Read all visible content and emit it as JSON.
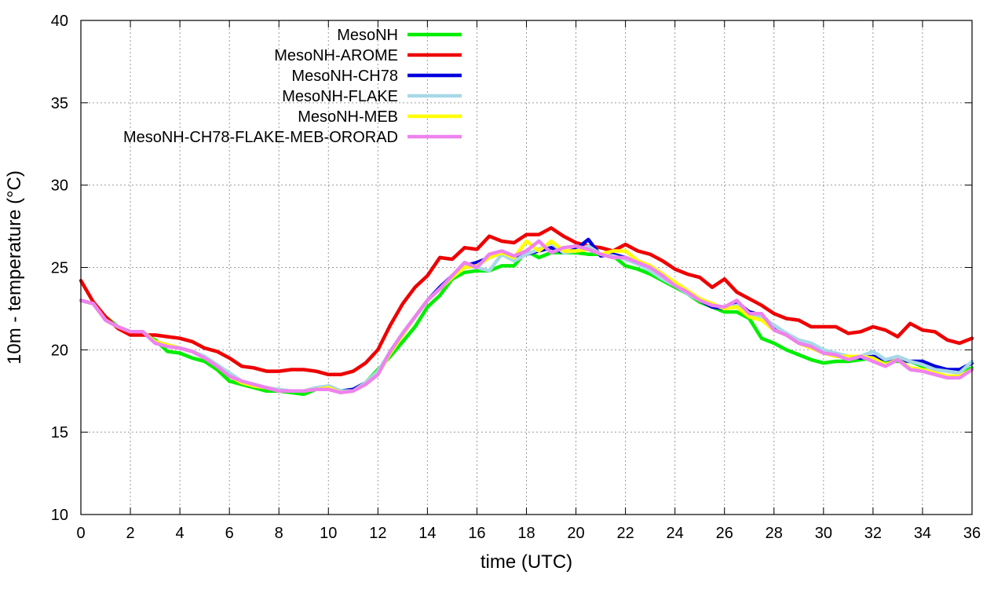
{
  "chart_data": {
    "type": "line",
    "title": "",
    "xlabel": "time (UTC)",
    "ylabel": "10m - temperature (°C)",
    "xlim": [
      0,
      36
    ],
    "ylim": [
      10,
      40
    ],
    "xticks": [
      0,
      2,
      4,
      6,
      8,
      10,
      12,
      14,
      16,
      18,
      20,
      22,
      24,
      26,
      28,
      30,
      32,
      34,
      36
    ],
    "yticks": [
      10,
      15,
      20,
      25,
      30,
      35,
      40
    ],
    "grid": true,
    "legend_position": "top-left",
    "x": [
      0,
      0.5,
      1,
      1.5,
      2,
      2.5,
      3,
      3.5,
      4,
      4.5,
      5,
      5.5,
      6,
      6.5,
      7,
      7.5,
      8,
      8.5,
      9,
      9.5,
      10,
      10.5,
      11,
      11.5,
      12,
      12.5,
      13,
      13.5,
      14,
      14.5,
      15,
      15.5,
      16,
      16.5,
      17,
      17.5,
      18,
      18.5,
      19,
      19.5,
      20,
      20.5,
      21,
      21.5,
      22,
      22.5,
      23,
      23.5,
      24,
      24.5,
      25,
      25.5,
      26,
      26.5,
      27,
      27.5,
      28,
      28.5,
      29,
      29.5,
      30,
      30.5,
      31,
      31.5,
      32,
      32.5,
      33,
      33.5,
      34,
      34.5,
      35,
      35.5,
      36
    ],
    "series": [
      {
        "name": "MesoNH",
        "color": "#00ee00",
        "values": [
          23.0,
          22.8,
          22.0,
          21.4,
          21.0,
          21.0,
          20.6,
          19.9,
          19.8,
          19.5,
          19.3,
          18.8,
          18.1,
          17.9,
          17.7,
          17.5,
          17.5,
          17.4,
          17.3,
          17.6,
          17.7,
          17.5,
          17.6,
          18.0,
          18.8,
          19.6,
          20.5,
          21.4,
          22.6,
          23.3,
          24.3,
          24.7,
          24.8,
          24.8,
          25.1,
          25.1,
          26.0,
          25.6,
          25.9,
          25.9,
          25.9,
          25.8,
          25.8,
          25.7,
          25.1,
          24.9,
          24.6,
          24.2,
          23.8,
          23.4,
          22.9,
          22.6,
          22.3,
          22.3,
          21.9,
          20.7,
          20.4,
          20.0,
          19.7,
          19.4,
          19.2,
          19.3,
          19.3,
          19.4,
          19.5,
          19.3,
          19.3,
          19.3,
          19.0,
          18.9,
          18.7,
          18.6,
          18.9
        ]
      },
      {
        "name": "MesoNH-AROME",
        "color": "#ee0000",
        "values": [
          24.2,
          22.9,
          22.0,
          21.3,
          20.9,
          20.9,
          20.9,
          20.8,
          20.7,
          20.5,
          20.1,
          19.9,
          19.5,
          19.0,
          18.9,
          18.7,
          18.7,
          18.8,
          18.8,
          18.7,
          18.5,
          18.5,
          18.7,
          19.2,
          20.0,
          21.5,
          22.8,
          23.8,
          24.5,
          25.6,
          25.5,
          26.2,
          26.1,
          26.9,
          26.6,
          26.5,
          27.0,
          27.0,
          27.4,
          26.9,
          26.5,
          26.3,
          26.2,
          26.0,
          26.4,
          26.0,
          25.8,
          25.4,
          24.9,
          24.6,
          24.4,
          23.8,
          24.3,
          23.5,
          23.1,
          22.7,
          22.2,
          21.9,
          21.8,
          21.4,
          21.4,
          21.4,
          21.0,
          21.1,
          21.4,
          21.2,
          20.8,
          21.6,
          21.2,
          21.1,
          20.6,
          20.4,
          20.7
        ]
      },
      {
        "name": "MesoNH-CH78",
        "color": "#0000dd",
        "values": [
          23.0,
          22.8,
          21.8,
          21.4,
          21.1,
          21.1,
          20.5,
          20.3,
          20.1,
          19.9,
          19.5,
          19.0,
          18.4,
          18.0,
          17.8,
          17.7,
          17.5,
          17.5,
          17.5,
          17.6,
          17.8,
          17.5,
          17.6,
          18.0,
          18.6,
          19.9,
          21.0,
          22.0,
          23.0,
          23.8,
          24.5,
          25.1,
          25.3,
          25.6,
          25.9,
          25.5,
          25.8,
          26.0,
          26.2,
          25.9,
          26.1,
          26.7,
          25.7,
          25.8,
          25.6,
          25.3,
          25.0,
          24.5,
          23.9,
          23.5,
          23.0,
          22.6,
          22.5,
          22.9,
          22.3,
          22.1,
          21.4,
          21.0,
          20.5,
          20.3,
          19.9,
          19.7,
          19.6,
          19.5,
          19.6,
          19.4,
          19.4,
          19.3,
          19.3,
          19.0,
          18.8,
          18.8,
          19.2
        ]
      },
      {
        "name": "MesoNH-FLAKE",
        "color": "#a8d8e8",
        "values": [
          23.0,
          22.8,
          21.8,
          21.4,
          21.1,
          21.1,
          20.5,
          20.3,
          20.1,
          19.9,
          19.6,
          19.1,
          18.6,
          18.1,
          17.9,
          17.7,
          17.6,
          17.5,
          17.5,
          17.7,
          17.8,
          17.5,
          17.5,
          18.0,
          18.7,
          19.9,
          21.0,
          22.0,
          23.0,
          23.7,
          24.5,
          25.1,
          25.0,
          24.8,
          25.8,
          25.4,
          25.8,
          26.1,
          26.5,
          25.9,
          26.0,
          26.3,
          25.8,
          25.7,
          25.5,
          25.2,
          24.8,
          24.3,
          23.9,
          23.4,
          23.0,
          22.8,
          22.5,
          22.7,
          22.2,
          22.0,
          21.5,
          21.0,
          20.6,
          20.4,
          20.0,
          19.8,
          19.6,
          19.6,
          19.9,
          19.4,
          19.6,
          19.3,
          19.1,
          18.8,
          18.7,
          18.6,
          19.3
        ]
      },
      {
        "name": "MesoNH-MEB",
        "color": "#ffff00",
        "values": [
          23.0,
          22.8,
          21.8,
          21.4,
          21.1,
          21.1,
          20.5,
          20.3,
          20.1,
          19.9,
          19.5,
          19.0,
          18.4,
          18.0,
          17.8,
          17.7,
          17.5,
          17.5,
          17.5,
          17.6,
          17.7,
          17.4,
          17.5,
          17.9,
          18.5,
          19.8,
          20.9,
          22.0,
          23.0,
          23.7,
          24.4,
          25.0,
          25.1,
          25.6,
          25.9,
          25.6,
          26.6,
          26.0,
          26.6,
          26.0,
          26.0,
          26.1,
          25.8,
          26.0,
          26.0,
          25.4,
          25.1,
          24.6,
          24.1,
          23.6,
          23.1,
          22.8,
          22.5,
          22.6,
          22.0,
          21.8,
          21.2,
          20.9,
          20.4,
          20.1,
          19.8,
          19.6,
          19.6,
          19.6,
          19.5,
          19.1,
          19.4,
          18.9,
          18.8,
          18.6,
          18.4,
          18.4,
          18.8
        ]
      },
      {
        "name": "MesoNH-CH78-FLAKE-MEB-ORORAD",
        "color": "#ee82ee",
        "values": [
          23.0,
          22.8,
          21.8,
          21.4,
          21.1,
          21.1,
          20.4,
          20.2,
          20.1,
          19.9,
          19.5,
          19.0,
          18.4,
          18.1,
          17.9,
          17.7,
          17.5,
          17.5,
          17.5,
          17.6,
          17.6,
          17.4,
          17.5,
          17.9,
          18.5,
          19.9,
          21.0,
          22.0,
          23.0,
          23.7,
          24.5,
          25.3,
          25.0,
          25.8,
          26.0,
          25.7,
          26.0,
          26.6,
          25.9,
          26.2,
          26.3,
          26.1,
          25.8,
          25.6,
          25.6,
          25.3,
          25.0,
          24.5,
          23.9,
          23.5,
          23.0,
          22.7,
          22.6,
          23.0,
          22.2,
          22.2,
          21.2,
          20.9,
          20.4,
          20.2,
          19.8,
          19.7,
          19.4,
          19.6,
          19.3,
          19.0,
          19.4,
          18.8,
          18.7,
          18.5,
          18.3,
          18.3,
          18.8
        ]
      }
    ]
  }
}
